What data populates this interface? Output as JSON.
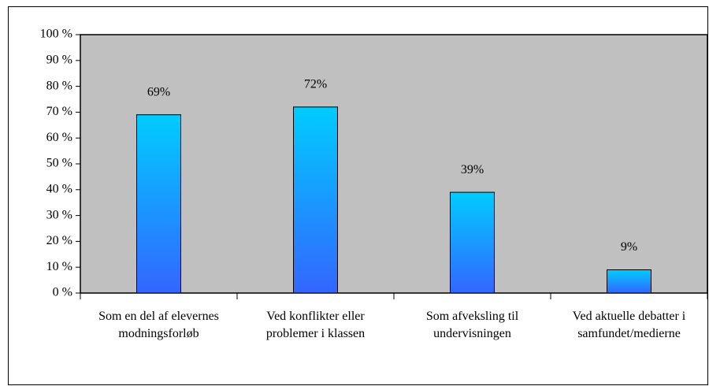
{
  "chart_data": {
    "type": "bar",
    "categories": [
      "Som en del af elevernes modningsforløb",
      "Ved konflikter eller problemer i klassen",
      "Som afveksling til undervisningen",
      "Ved aktuelle debatter i samfundet/medierne"
    ],
    "values": [
      69,
      72,
      39,
      9
    ],
    "value_labels": [
      "69%",
      "72%",
      "39%",
      "9%"
    ],
    "color": [
      "#00ccff",
      "#3366ff"
    ],
    "ylim": [
      0,
      100
    ],
    "yticks": [
      {
        "value": 0,
        "label": "0 %"
      },
      {
        "value": 10,
        "label": "10 %"
      },
      {
        "value": 20,
        "label": "20 %"
      },
      {
        "value": 30,
        "label": "30 %"
      },
      {
        "value": 40,
        "label": "40 %"
      },
      {
        "value": 50,
        "label": "50 %"
      },
      {
        "value": 60,
        "label": "60 %"
      },
      {
        "value": 70,
        "label": "70 %"
      },
      {
        "value": 80,
        "label": "80 %"
      },
      {
        "value": 90,
        "label": "90 %"
      },
      {
        "value": 100,
        "label": "100 %"
      }
    ],
    "grid": false
  }
}
